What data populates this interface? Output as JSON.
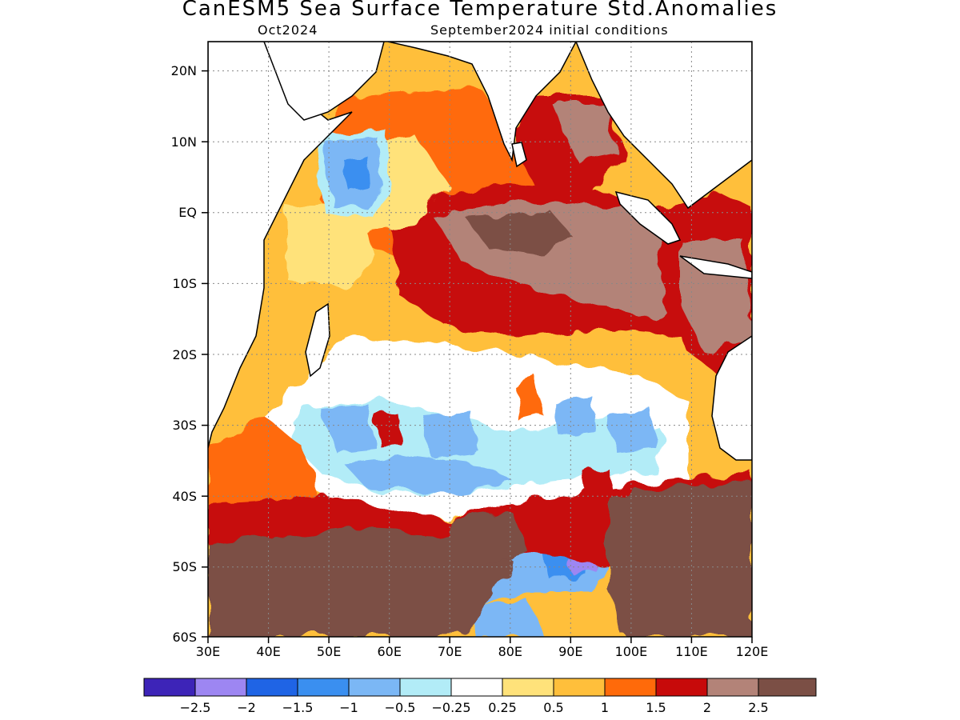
{
  "title": "CanESM5 Sea Surface Temperature Std.Anomalies",
  "valid_month": "Oct2024",
  "init_conditions": "September2024 initial conditions",
  "axes": {
    "lon_labels": [
      "30E",
      "40E",
      "50E",
      "60E",
      "70E",
      "80E",
      "90E",
      "100E",
      "110E",
      "120E"
    ],
    "lat_labels": [
      "20N",
      "10N",
      "EQ",
      "10S",
      "20S",
      "30S",
      "40S",
      "50S",
      "60S"
    ],
    "lon_range": [
      30,
      120
    ],
    "lat_range": [
      -60,
      24
    ]
  },
  "colorbar": {
    "colors": [
      "#3d24b8",
      "#9d86f2",
      "#1f64e5",
      "#3a8ff0",
      "#7bb7f5",
      "#b2ecf7",
      "#ffffff",
      "#ffe27a",
      "#ffbf3b",
      "#ff6a0a",
      "#c70a0a",
      "#b38378",
      "#7b4f45"
    ],
    "labels": [
      "−2.5",
      "−2",
      "−1.5",
      "−1",
      "−0.5",
      "−0.25",
      "0.25",
      "0.5",
      "1",
      "1.5",
      "2",
      "2.5"
    ]
  },
  "regions": [
    {
      "name": "south-west-brown-band",
      "level": 2.5
    },
    {
      "name": "south-east-brown-band",
      "level": 2.5
    },
    {
      "name": "sumatra-warm-tongue",
      "level": 2.5
    },
    {
      "name": "central-warm-core",
      "level": 2.0
    },
    {
      "name": "arabian-sea-cool-patch",
      "level": -1.0
    },
    {
      "name": "subtropical-cool-band",
      "level": -0.5
    },
    {
      "name": "south-cool-patch",
      "level": -1.0
    },
    {
      "name": "kerguelen-cool-spot",
      "level": -2.0
    }
  ]
}
